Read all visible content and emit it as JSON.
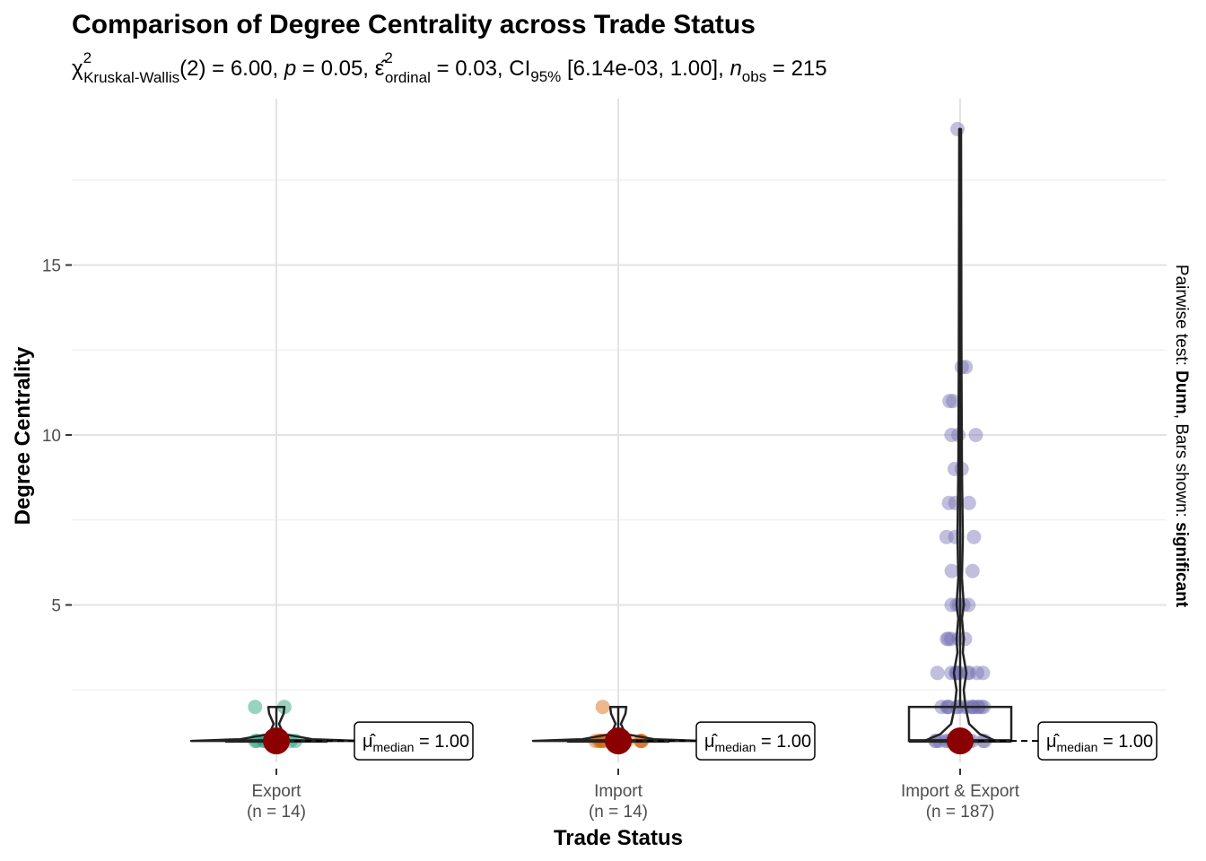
{
  "chart_data": {
    "type": "violin",
    "title": "Comparison of Degree Centrality across Trade Status",
    "subtitle": {
      "stat_symbol": "χ",
      "stat_sup": "2",
      "stat_sub": "Kruskal-Wallis",
      "df": "(2)",
      "stat_value": " = 6.00, ",
      "p_symbol": "p",
      "p_value": " = 0.05, ",
      "effect_symbol": "ε̂",
      "effect_sup": "2",
      "effect_sub": "ordinal",
      "effect_value": " = 0.03, ",
      "ci_prefix": "CI",
      "ci_sub": "95%",
      "ci_value": " [6.14e-03, 1.00], ",
      "n_symbol": "n",
      "n_sub": "obs",
      "n_value": " = 215"
    },
    "xlabel": "Trade Status",
    "ylabel": "Degree Centrality",
    "caption": {
      "prefix": "Pairwise test: ",
      "test": "Dunn",
      "middle": ", Bars shown: ",
      "bars": "significant"
    },
    "ylim": [
      0,
      20
    ],
    "yticks": [
      5,
      10,
      15
    ],
    "grid": true,
    "categories": [
      "Export",
      "Import",
      "Import & Export"
    ],
    "counts": [
      "(n = 14)",
      "(n = 14)",
      "(n = 187)"
    ],
    "colors": [
      "#1b9e77",
      "#d95f02",
      "#7570b3"
    ],
    "medians": [
      1,
      1,
      1
    ],
    "median_labels": [
      {
        "symbol": "μ̂",
        "sub": "median",
        "value": " = 1.00"
      },
      {
        "symbol": "μ̂",
        "sub": "median",
        "value": " = 1.00"
      },
      {
        "symbol": "μ̂",
        "sub": "median",
        "value": " = 1.00"
      }
    ],
    "box": [
      {
        "q1": 1,
        "median": 1,
        "q3": 1,
        "whisker_low": 1,
        "whisker_high": 2
      },
      {
        "q1": 1,
        "median": 1,
        "q3": 1,
        "whisker_low": 1,
        "whisker_high": 2
      },
      {
        "q1": 1,
        "median": 1,
        "q3": 2,
        "whisker_low": 1,
        "whisker_high": 19
      }
    ],
    "points": [
      {
        "group": 0,
        "values": [
          1,
          1,
          1,
          1,
          1,
          1,
          1,
          1,
          1,
          1,
          1,
          1,
          2,
          2
        ]
      },
      {
        "group": 1,
        "values": [
          1,
          1,
          1,
          1,
          1,
          1,
          1,
          1,
          1,
          1,
          1,
          1,
          1,
          2
        ]
      },
      {
        "group": 2,
        "values": [
          19,
          12,
          12,
          11,
          11,
          10,
          10,
          10,
          9,
          9,
          8,
          8,
          8,
          7,
          7,
          7,
          6,
          6,
          5,
          5,
          5,
          5,
          5,
          4,
          4,
          4,
          4,
          4,
          3,
          3,
          3,
          3,
          3,
          3,
          3,
          3,
          3,
          3,
          2,
          2,
          2,
          2,
          2,
          2,
          2,
          2,
          2,
          2,
          2,
          2,
          2,
          2,
          2,
          1,
          1,
          1,
          1,
          1,
          1,
          1,
          1,
          1,
          1,
          1,
          1,
          1,
          1,
          1
        ]
      }
    ]
  }
}
